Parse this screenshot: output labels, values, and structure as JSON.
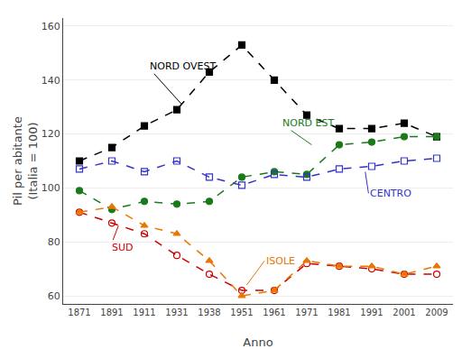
{
  "chart_data": {
    "type": "line",
    "xlabel": "Anno",
    "ylabel": "Pil per abitante\n(Italia = 100)",
    "categories": [
      "1871",
      "1891",
      "1911",
      "1931",
      "1938",
      "1951",
      "1961",
      "1971",
      "1981",
      "1991",
      "2001",
      "2009"
    ],
    "series": [
      {
        "name": "NORD OVEST",
        "color": "#000000",
        "marker": "square",
        "line_style": "dashed",
        "values": [
          110,
          115,
          123,
          129,
          143,
          153,
          140,
          127,
          122,
          122,
          124,
          119
        ]
      },
      {
        "name": "NORD EST",
        "color": "#1a7a1a",
        "marker": "circle",
        "line_style": "dashed",
        "values": [
          99,
          92,
          95,
          94,
          95,
          104,
          106,
          105,
          116,
          117,
          119,
          119
        ]
      },
      {
        "name": "CENTRO",
        "color": "#3333cc",
        "marker": "square-open",
        "line_style": "dashed",
        "values": [
          107,
          110,
          106,
          110,
          104,
          101,
          105,
          104,
          107,
          108,
          110,
          111
        ]
      },
      {
        "name": "SUD",
        "color": "#cc0000",
        "marker": "circle-open",
        "line_style": "dashed",
        "values": [
          91,
          87,
          83,
          75,
          68,
          62,
          62,
          72,
          71,
          70,
          68,
          68
        ]
      },
      {
        "name": "ISOLE",
        "color": "#e87700",
        "marker": "triangle-up",
        "line_style": "dashed",
        "values": [
          91,
          93,
          86,
          83,
          73,
          60,
          62,
          73,
          71,
          71,
          68,
          71
        ]
      }
    ],
    "ylim": [
      57,
      163
    ],
    "yticks": [
      60,
      80,
      100,
      120,
      140,
      160
    ],
    "grid": true,
    "annotations": [
      {
        "text": "NORD OVEST",
        "x": 3.15,
        "y": 131,
        "text_x": 2.1,
        "text_y": 145,
        "color": "#000000"
      },
      {
        "text": "NORD EST",
        "x": 7.15,
        "y": 116,
        "text_x": 6.2,
        "text_y": 124,
        "color": "#1a7a1a"
      },
      {
        "text": "CENTRO",
        "x": 8.8,
        "y": 106,
        "text_x": 8.9,
        "text_y": 98,
        "color": "#3333cc"
      },
      {
        "text": "SUD",
        "x": 1.2,
        "y": 86,
        "text_x": 0.95,
        "text_y": 78,
        "color": "#cc0000"
      },
      {
        "text": "ISOLE",
        "x": 5.15,
        "y": 64,
        "text_x": 5.7,
        "text_y": 73,
        "color": "#e87700"
      }
    ]
  }
}
